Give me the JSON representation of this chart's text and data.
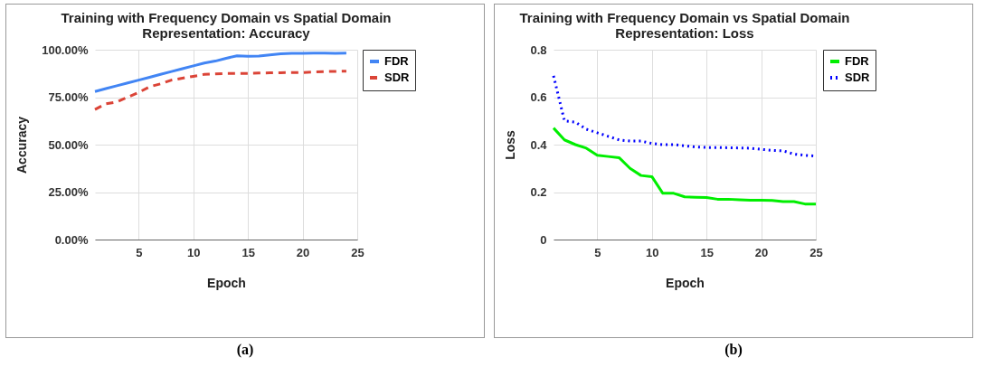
{
  "chart_data": [
    {
      "type": "line",
      "title": "Training with Frequency Domain vs Spatial Domain Representation: Accuracy",
      "xlabel": "Epoch",
      "ylabel": "Accuracy",
      "x": [
        1,
        2,
        3,
        4,
        5,
        6,
        7,
        8,
        9,
        10,
        11,
        12,
        13,
        14,
        15,
        16,
        17,
        18,
        19,
        20,
        21,
        22,
        23,
        24
      ],
      "series": [
        {
          "name": "FDR",
          "color": "#4285f4",
          "line_style": "solid",
          "values": [
            78,
            79.5,
            81,
            82.5,
            84,
            85.5,
            87,
            88.5,
            90,
            91.5,
            93,
            94,
            95.5,
            96.8,
            96.5,
            96.7,
            97.3,
            97.9,
            98.1,
            98.1,
            98.2,
            98.2,
            98.1,
            98.2
          ]
        },
        {
          "name": "SDR",
          "color": "#db4437",
          "line_style": "dashed",
          "values": [
            68.5,
            71.5,
            72.5,
            75,
            77.5,
            80.5,
            82,
            84,
            85,
            86,
            87,
            87.3,
            87.5,
            87.5,
            87.5,
            87.7,
            87.8,
            87.9,
            88,
            88,
            88.3,
            88.5,
            88.6,
            88.7
          ]
        }
      ],
      "xlim": [
        1,
        25
      ],
      "xticks": [
        5,
        10,
        15,
        20,
        25
      ],
      "ylim": [
        0,
        100
      ],
      "yticks": [
        {
          "value": 0,
          "label": "0.00%"
        },
        {
          "value": 25,
          "label": "25.00%"
        },
        {
          "value": 50,
          "label": "50.00%"
        },
        {
          "value": 75,
          "label": "75.00%"
        },
        {
          "value": 100,
          "label": "100.00%"
        }
      ],
      "grid": true,
      "legend": "top right",
      "annotations": [
        "(a)"
      ]
    },
    {
      "type": "line",
      "title": "Training with Frequency Domain vs Spatial Domain Representation: Loss",
      "xlabel": "Epoch",
      "ylabel": "Loss",
      "x": [
        1,
        2,
        3,
        4,
        5,
        6,
        7,
        8,
        9,
        10,
        11,
        12,
        13,
        14,
        15,
        16,
        17,
        18,
        19,
        20,
        21,
        22,
        23,
        24,
        25
      ],
      "series": [
        {
          "name": "FDR",
          "color": "#00ee00",
          "line_style": "solid",
          "values": [
            0.47,
            0.42,
            0.4,
            0.385,
            0.355,
            0.35,
            0.345,
            0.3,
            0.27,
            0.265,
            0.195,
            0.195,
            0.18,
            0.178,
            0.177,
            0.17,
            0.17,
            0.168,
            0.166,
            0.166,
            0.165,
            0.16,
            0.16,
            0.15,
            0.15
          ]
        },
        {
          "name": "SDR",
          "color": "#0000ff",
          "line_style": "dotted",
          "values": [
            0.69,
            0.5,
            0.495,
            0.465,
            0.45,
            0.435,
            0.42,
            0.415,
            0.415,
            0.405,
            0.4,
            0.4,
            0.395,
            0.39,
            0.388,
            0.388,
            0.387,
            0.386,
            0.385,
            0.38,
            0.376,
            0.374,
            0.36,
            0.355,
            0.352
          ]
        }
      ],
      "xlim": [
        1,
        25
      ],
      "xticks": [
        5,
        10,
        15,
        20,
        25
      ],
      "ylim": [
        0,
        0.8
      ],
      "yticks": [
        0,
        0.2,
        0.4,
        0.6,
        0.8
      ],
      "grid": true,
      "legend": "top right",
      "annotations": [
        "(b)"
      ]
    }
  ]
}
